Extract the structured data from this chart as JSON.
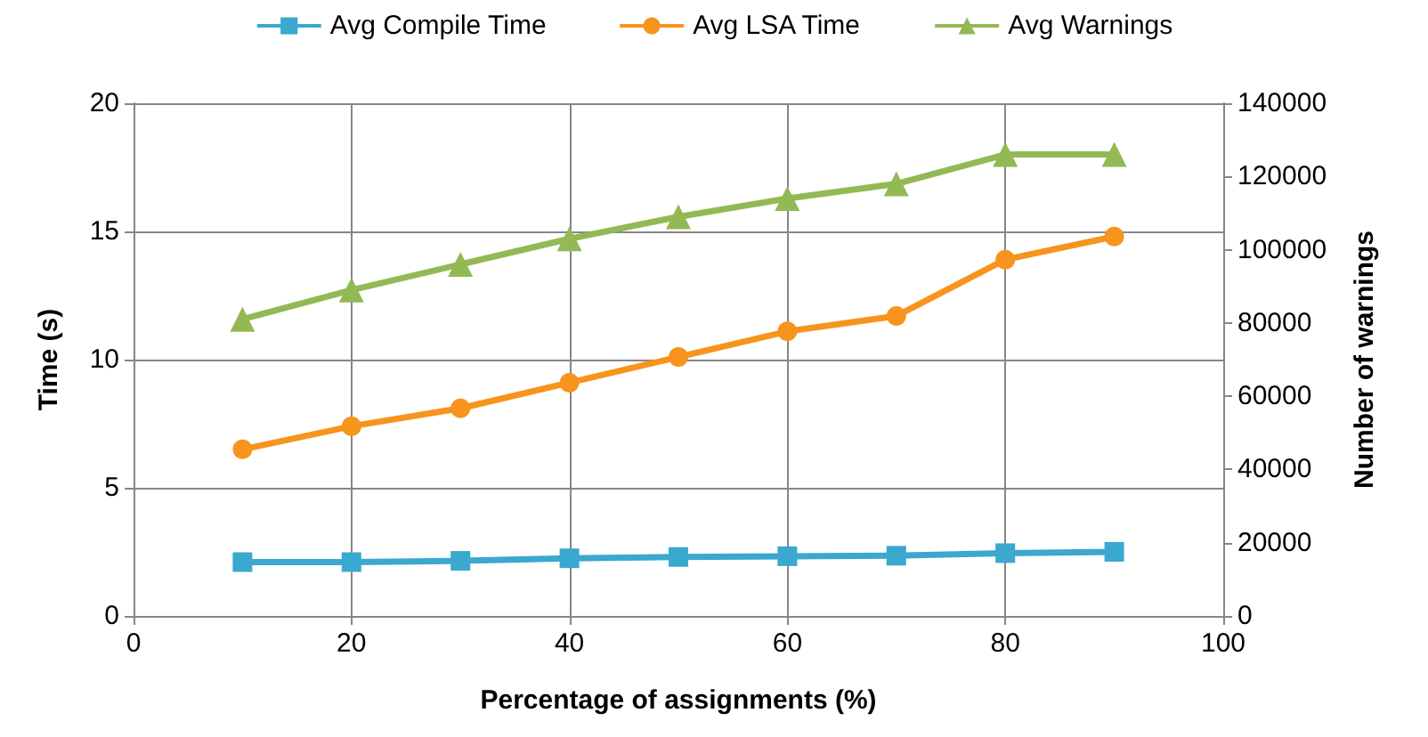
{
  "chart_data": {
    "type": "line",
    "xlabel": "Percentage of assignments (%)",
    "ylabel": "Time (s)",
    "y2label": "Number of warnings",
    "x": [
      10,
      20,
      30,
      40,
      50,
      60,
      70,
      80,
      90
    ],
    "series": [
      {
        "name": "Avg Compile Time",
        "color": "#3aa8cf",
        "marker": "square",
        "values": [
          2.1,
          2.1,
          2.15,
          2.25,
          2.3,
          2.33,
          2.35,
          2.45,
          2.5
        ]
      },
      {
        "name": "Avg LSA Time",
        "color": "#f7941d",
        "marker": "circle",
        "values": [
          6.5,
          7.4,
          8.1,
          9.1,
          10.1,
          11.1,
          11.7,
          13.9,
          14.8
        ]
      },
      {
        "name": "Avg Warnings",
        "color": "#93b955",
        "marker": "triangle",
        "axis": "y2",
        "values": [
          81000,
          89000,
          96000,
          103000,
          109000,
          114000,
          118000,
          126000,
          126000
        ]
      }
    ],
    "xlim": [
      0,
      100
    ],
    "xticks": [
      0,
      20,
      40,
      60,
      80,
      100
    ],
    "ylim": [
      0,
      20
    ],
    "yticks": [
      0,
      5,
      10,
      15,
      20
    ],
    "y2lim": [
      0,
      140000
    ],
    "y2ticks": [
      0,
      20000,
      40000,
      60000,
      80000,
      100000,
      120000,
      140000
    ],
    "grid": true,
    "legend": "top",
    "line_style": "solid"
  }
}
